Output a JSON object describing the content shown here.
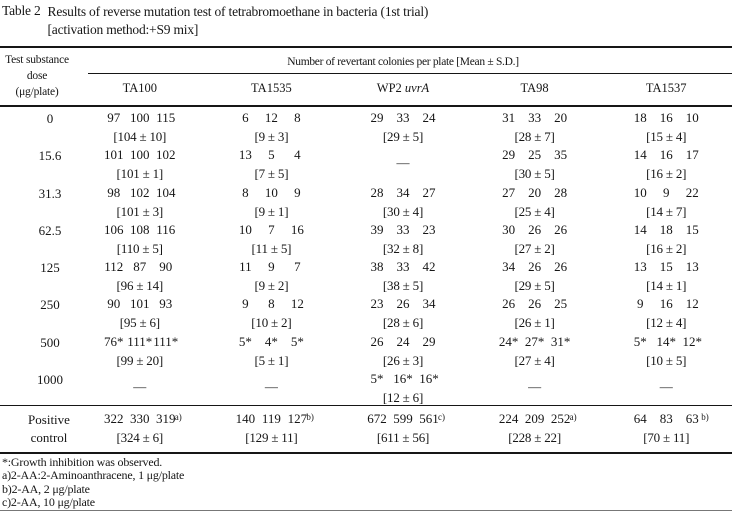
{
  "title": {
    "label": "Table 2",
    "line1": "Results of reverse mutation test of tetrabromoethane in bacteria (1st trial)",
    "line2": "[activation method:+S9 mix]"
  },
  "header": {
    "dose_line1": "Test substance",
    "dose_line2": "dose",
    "dose_line3": "(μg/plate)",
    "span_title": "Number of revertant colonies per plate [Mean ± S.D.]",
    "strains": [
      {
        "pre": "TA100"
      },
      {
        "pre": "TA1535"
      },
      {
        "pre": "WP2 ",
        "it": "uvrA"
      },
      {
        "pre": "TA98"
      },
      {
        "pre": "TA1537"
      }
    ]
  },
  "rows": [
    {
      "dose": "0",
      "cells": [
        {
          "c0": "97",
          "c1": "100",
          "c2": "115",
          "m": "[104 ± 10]"
        },
        {
          "c0": "6",
          "c1": "12",
          "c2": "8",
          "m": "[9 ± 3]"
        },
        {
          "c0": "29",
          "c1": "33",
          "c2": "24",
          "m": "[29 ± 5]"
        },
        {
          "c0": "31",
          "c1": "33",
          "c2": "20",
          "m": "[28 ± 7]"
        },
        {
          "c0": "18",
          "c1": "16",
          "c2": "10",
          "m": "[15 ± 4]"
        }
      ]
    },
    {
      "dose": "15.6",
      "cells": [
        {
          "c0": "101",
          "c1": "100",
          "c2": "102",
          "m": "[101 ± 1]"
        },
        {
          "c0": "13",
          "c1": "5",
          "c2": "4",
          "m": "[7 ± 5]"
        },
        {
          "dash": "—"
        },
        {
          "c0": "29",
          "c1": "25",
          "c2": "35",
          "m": "[30 ± 5]"
        },
        {
          "c0": "14",
          "c1": "16",
          "c2": "17",
          "m": "[16 ± 2]"
        }
      ]
    },
    {
      "dose": "31.3",
      "cells": [
        {
          "c0": "98",
          "c1": "102",
          "c2": "104",
          "m": "[101 ± 3]"
        },
        {
          "c0": "8",
          "c1": "10",
          "c2": "9",
          "m": "[9 ± 1]"
        },
        {
          "c0": "28",
          "c1": "34",
          "c2": "27",
          "m": "[30 ± 4]"
        },
        {
          "c0": "27",
          "c1": "20",
          "c2": "28",
          "m": "[25 ± 4]"
        },
        {
          "c0": "10",
          "c1": "9",
          "c2": "22",
          "m": "[14 ± 7]"
        }
      ]
    },
    {
      "dose": "62.5",
      "cells": [
        {
          "c0": "106",
          "c1": "108",
          "c2": "116",
          "m": "[110 ± 5]"
        },
        {
          "c0": "10",
          "c1": "7",
          "c2": "16",
          "m": "[11 ± 5]"
        },
        {
          "c0": "39",
          "c1": "33",
          "c2": "23",
          "m": "[32 ± 8]"
        },
        {
          "c0": "30",
          "c1": "26",
          "c2": "26",
          "m": "[27 ± 2]"
        },
        {
          "c0": "14",
          "c1": "18",
          "c2": "15",
          "m": "[16 ± 2]"
        }
      ]
    },
    {
      "dose": "125",
      "cells": [
        {
          "c0": "112",
          "c1": "87",
          "c2": "90",
          "m": "[96 ± 14]"
        },
        {
          "c0": "11",
          "c1": "9",
          "c2": "7",
          "m": "[9 ± 2]"
        },
        {
          "c0": "38",
          "c1": "33",
          "c2": "42",
          "m": "[38 ± 5]"
        },
        {
          "c0": "34",
          "c1": "26",
          "c2": "26",
          "m": "[29 ± 5]"
        },
        {
          "c0": "13",
          "c1": "15",
          "c2": "13",
          "m": "[14 ± 1]"
        }
      ]
    },
    {
      "dose": "250",
      "cells": [
        {
          "c0": "90",
          "c1": "101",
          "c2": "93",
          "m": "[95 ± 6]"
        },
        {
          "c0": "9",
          "c1": "8",
          "c2": "12",
          "m": "[10 ± 2]"
        },
        {
          "c0": "23",
          "c1": "26",
          "c2": "34",
          "m": "[28 ± 6]"
        },
        {
          "c0": "26",
          "c1": "26",
          "c2": "25",
          "m": "[26 ± 1]"
        },
        {
          "c0": "9",
          "c1": "16",
          "c2": "12",
          "m": "[12 ± 4]"
        }
      ]
    },
    {
      "dose": "500",
      "cells": [
        {
          "c0": "76*",
          "c1": "111*",
          "c2": "111*",
          "m": "[99 ± 20]"
        },
        {
          "c0": "5*",
          "c1": "4*",
          "c2": "5*",
          "m": "[5 ± 1]"
        },
        {
          "c0": "26",
          "c1": "24",
          "c2": "29",
          "m": "[26 ± 3]"
        },
        {
          "c0": "24*",
          "c1": "27*",
          "c2": "31*",
          "m": "[27 ± 4]"
        },
        {
          "c0": "5*",
          "c1": "14*",
          "c2": "12*",
          "m": "[10 ± 5]"
        }
      ]
    },
    {
      "dose": "1000",
      "cells": [
        {
          "dash": "—"
        },
        {
          "dash": "—"
        },
        {
          "c0": "5*",
          "c1": "16*",
          "c2": "16*",
          "m": "[12 ± 6]"
        },
        {
          "dash": "—"
        },
        {
          "dash": "—"
        }
      ]
    }
  ],
  "positive_control": {
    "dose": "Positive control",
    "cells": [
      {
        "c0": "322",
        "c1": "330",
        "c2": "319",
        "sup": "a)",
        "m": "[324 ± 6]"
      },
      {
        "c0": "140",
        "c1": "119",
        "c2": "127",
        "sup": "b)",
        "m": "[129 ± 11]"
      },
      {
        "c0": "672",
        "c1": "599",
        "c2": "561",
        "sup": "c)",
        "m": "[611 ± 56]"
      },
      {
        "c0": "224",
        "c1": "209",
        "c2": "252",
        "sup": "a)",
        "m": "[228 ± 22]"
      },
      {
        "c0": "64",
        "c1": "83",
        "c2": "63",
        "sup": "b)",
        "m": "[70 ± 11]"
      }
    ]
  },
  "footnotes": [
    "*:Growth inhibition was observed.",
    "a)2-AA:2-Aminoanthracene, 1 μg/plate",
    "b)2-AA, 2 μg/plate",
    "c)2-AA, 10 μg/plate"
  ],
  "colors": {
    "ink": "#161616",
    "background": "#ffffff"
  }
}
